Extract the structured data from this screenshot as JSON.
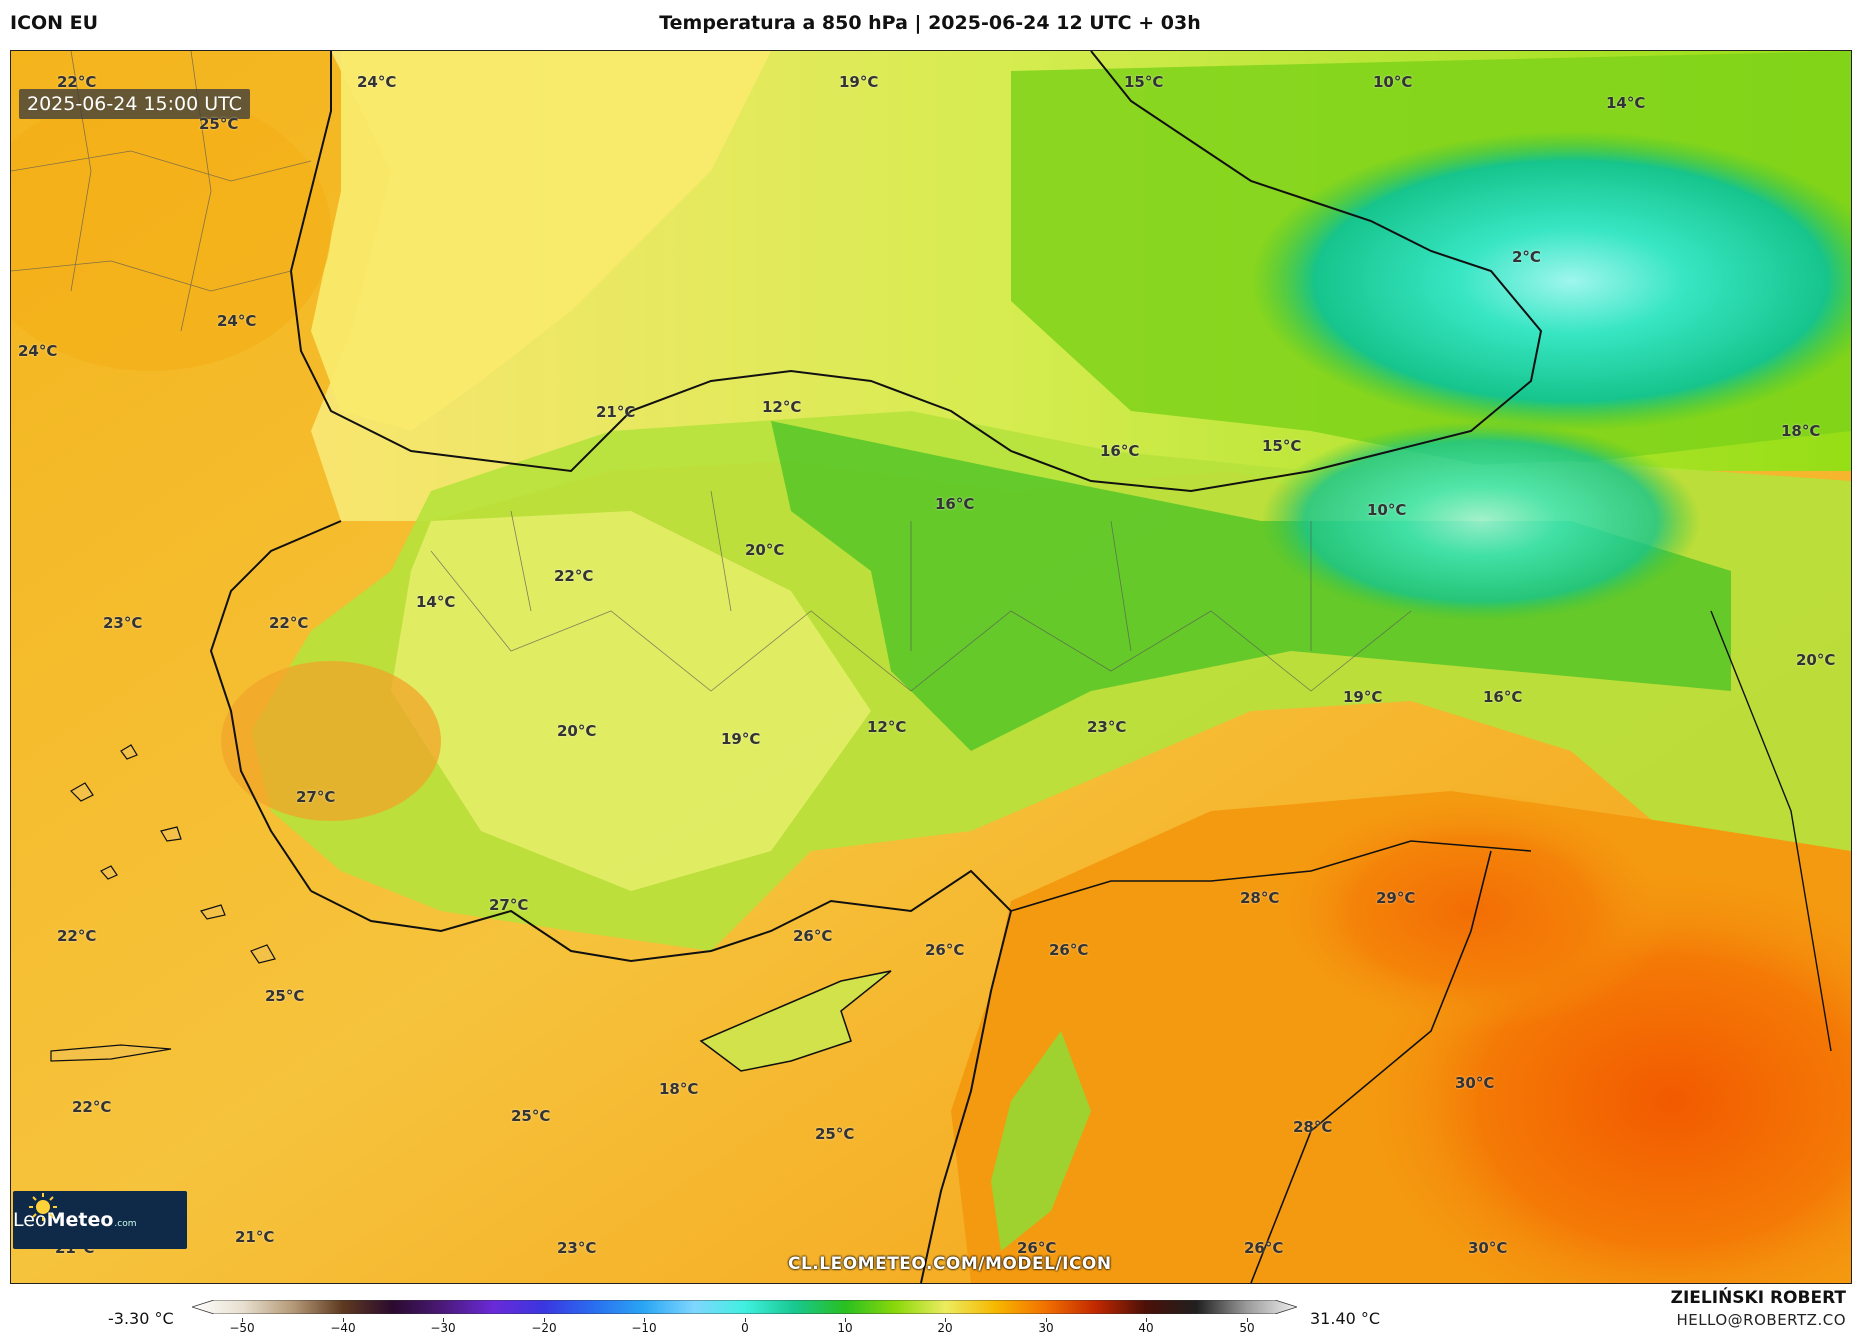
{
  "header": {
    "model": "ICON EU",
    "title": "Temperatura a 850 hPa | 2025-06-24 12 UTC + 03h"
  },
  "map": {
    "valid_time": "2025-06-24 15:00 UTC",
    "watermark": "CL.LEOMETEO.COM/MODEL/ICON",
    "logo": {
      "brand_light": "Leo",
      "brand_bold": "Meteo",
      "suffix": ".com"
    },
    "labels": [
      {
        "text": "22°C",
        "fx": 0.025,
        "fy": 0.018
      },
      {
        "text": "25°C",
        "fx": 0.102,
        "fy": 0.052
      },
      {
        "text": "24°C",
        "fx": 0.188,
        "fy": 0.018
      },
      {
        "text": "19°C",
        "fx": 0.45,
        "fy": 0.018
      },
      {
        "text": "15°C",
        "fx": 0.605,
        "fy": 0.018
      },
      {
        "text": "10°C",
        "fx": 0.74,
        "fy": 0.018
      },
      {
        "text": "14°C",
        "fx": 0.867,
        "fy": 0.035
      },
      {
        "text": "2°C",
        "fx": 0.816,
        "fy": 0.16
      },
      {
        "text": "24°C",
        "fx": 0.112,
        "fy": 0.212
      },
      {
        "text": "24°C",
        "fx": 0.004,
        "fy": 0.236
      },
      {
        "text": "21°C",
        "fx": 0.318,
        "fy": 0.286
      },
      {
        "text": "12°C",
        "fx": 0.408,
        "fy": 0.282
      },
      {
        "text": "16°C",
        "fx": 0.592,
        "fy": 0.317
      },
      {
        "text": "15°C",
        "fx": 0.68,
        "fy": 0.313
      },
      {
        "text": "18°C",
        "fx": 0.962,
        "fy": 0.301
      },
      {
        "text": "16°C",
        "fx": 0.502,
        "fy": 0.36
      },
      {
        "text": "10°C",
        "fx": 0.737,
        "fy": 0.365
      },
      {
        "text": "20°C",
        "fx": 0.399,
        "fy": 0.398
      },
      {
        "text": "22°C",
        "fx": 0.295,
        "fy": 0.419
      },
      {
        "text": "14°C",
        "fx": 0.22,
        "fy": 0.44
      },
      {
        "text": "23°C",
        "fx": 0.05,
        "fy": 0.457
      },
      {
        "text": "22°C",
        "fx": 0.14,
        "fy": 0.457
      },
      {
        "text": "20°C",
        "fx": 0.97,
        "fy": 0.487
      },
      {
        "text": "19°C",
        "fx": 0.724,
        "fy": 0.517
      },
      {
        "text": "16°C",
        "fx": 0.8,
        "fy": 0.517
      },
      {
        "text": "23°C",
        "fx": 0.585,
        "fy": 0.541
      },
      {
        "text": "12°C",
        "fx": 0.465,
        "fy": 0.541
      },
      {
        "text": "20°C",
        "fx": 0.297,
        "fy": 0.545
      },
      {
        "text": "19°C",
        "fx": 0.386,
        "fy": 0.551
      },
      {
        "text": "27°C",
        "fx": 0.155,
        "fy": 0.598
      },
      {
        "text": "27°C",
        "fx": 0.26,
        "fy": 0.686
      },
      {
        "text": "28°C",
        "fx": 0.668,
        "fy": 0.68
      },
      {
        "text": "29°C",
        "fx": 0.742,
        "fy": 0.68
      },
      {
        "text": "26°C",
        "fx": 0.425,
        "fy": 0.711
      },
      {
        "text": "26°C",
        "fx": 0.497,
        "fy": 0.722
      },
      {
        "text": "26°C",
        "fx": 0.564,
        "fy": 0.722
      },
      {
        "text": "22°C",
        "fx": 0.025,
        "fy": 0.711
      },
      {
        "text": "25°C",
        "fx": 0.138,
        "fy": 0.76
      },
      {
        "text": "30°C",
        "fx": 0.785,
        "fy": 0.83
      },
      {
        "text": "18°C",
        "fx": 0.352,
        "fy": 0.835
      },
      {
        "text": "22°C",
        "fx": 0.033,
        "fy": 0.85
      },
      {
        "text": "25°C",
        "fx": 0.272,
        "fy": 0.857
      },
      {
        "text": "28°C",
        "fx": 0.697,
        "fy": 0.866
      },
      {
        "text": "25°C",
        "fx": 0.437,
        "fy": 0.872
      },
      {
        "text": "21°C",
        "fx": 0.122,
        "fy": 0.955
      },
      {
        "text": "21°C",
        "fx": 0.024,
        "fy": 0.964
      },
      {
        "text": "23°C",
        "fx": 0.297,
        "fy": 0.964
      },
      {
        "text": "26°C",
        "fx": 0.547,
        "fy": 0.964
      },
      {
        "text": "26°C",
        "fx": 0.67,
        "fy": 0.964
      },
      {
        "text": "30°C",
        "fx": 0.792,
        "fy": 0.964
      }
    ]
  },
  "colorbar": {
    "min_label": "-3.30 °C",
    "max_label": "31.40 °C",
    "ticks": [
      "−50",
      "−40",
      "−30",
      "−20",
      "−10",
      "0",
      "10",
      "20",
      "30",
      "40",
      "50"
    ],
    "range": [
      -55,
      55
    ],
    "stops": [
      {
        "v": -55,
        "c": "#ffffff"
      },
      {
        "v": -50,
        "c": "#e8e0d0"
      },
      {
        "v": -45,
        "c": "#b59a78"
      },
      {
        "v": -40,
        "c": "#5e3a20"
      },
      {
        "v": -35,
        "c": "#2a0a2e"
      },
      {
        "v": -30,
        "c": "#4b1a7a"
      },
      {
        "v": -25,
        "c": "#6a2ad8"
      },
      {
        "v": -20,
        "c": "#3a36e0"
      },
      {
        "v": -15,
        "c": "#2a6ef0"
      },
      {
        "v": -10,
        "c": "#2aa6f4"
      },
      {
        "v": -5,
        "c": "#7fd6ff"
      },
      {
        "v": 0,
        "c": "#40f0e0"
      },
      {
        "v": 5,
        "c": "#18c890"
      },
      {
        "v": 10,
        "c": "#28c020"
      },
      {
        "v": 15,
        "c": "#8ad80a"
      },
      {
        "v": 20,
        "c": "#ecec60"
      },
      {
        "v": 25,
        "c": "#f6b800"
      },
      {
        "v": 30,
        "c": "#f27000"
      },
      {
        "v": 35,
        "c": "#c02800"
      },
      {
        "v": 40,
        "c": "#4a1008"
      },
      {
        "v": 45,
        "c": "#202020"
      },
      {
        "v": 50,
        "c": "#9a9a9a"
      },
      {
        "v": 55,
        "c": "#f0f0f0"
      }
    ]
  },
  "credits": {
    "author": "ZIELIŃSKI ROBERT",
    "email": "HELLO@ROBERTZ.CO"
  },
  "colors": {
    "hot": "#f27000",
    "warm": "#f6b800",
    "mild": "#f8ea6a",
    "cool": "#7ed21a",
    "cold": "#1fd6a6",
    "logo_bg": "#0f2a48"
  }
}
